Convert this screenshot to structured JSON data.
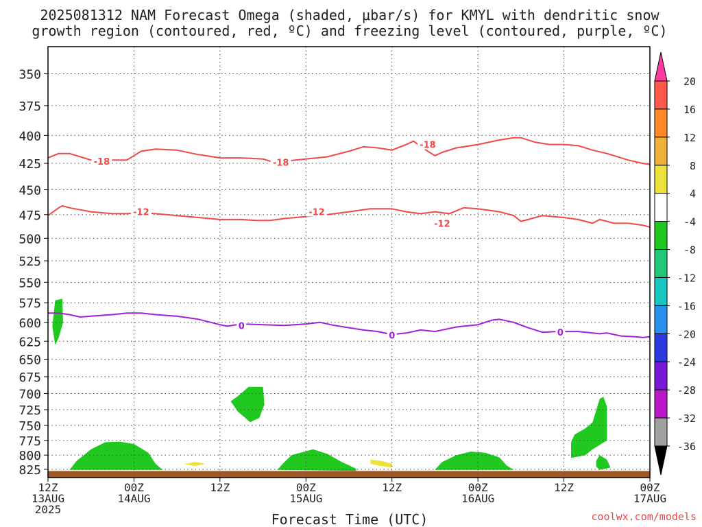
{
  "title_line1": "2025081312 NAM Forecast Omega (shaded, μbar/s) for KMYL with dendritic snow",
  "title_line2": "growth region (contoured, red, ºC) and freezing level (contoured, purple, ºC)",
  "credit": "coolwx.com/models",
  "chart_data": {
    "type": "time-height cross section",
    "xlabel": "Forecast Time (UTC)",
    "x_ticks": [
      {
        "hour": 0,
        "line1": "12Z",
        "line2": "13AUG",
        "line3": "2025"
      },
      {
        "hour": 12,
        "line1": "00Z",
        "line2": "14AUG"
      },
      {
        "hour": 24,
        "line1": "12Z"
      },
      {
        "hour": 36,
        "line1": "00Z",
        "line2": "15AUG"
      },
      {
        "hour": 48,
        "line1": "12Z"
      },
      {
        "hour": 60,
        "line1": "00Z",
        "line2": "16AUG"
      },
      {
        "hour": 72,
        "line1": "12Z"
      },
      {
        "hour": 84,
        "line1": "00Z",
        "line2": "17AUG"
      }
    ],
    "x_range_hours": [
      0,
      84
    ],
    "y_label_unit": "mb",
    "y_ticks": [
      350,
      375,
      400,
      425,
      450,
      475,
      500,
      525,
      550,
      575,
      600,
      625,
      650,
      675,
      700,
      725,
      750,
      775,
      800,
      825
    ],
    "y_range": [
      330,
      840
    ],
    "y_scale": "log-pressure",
    "grid": true,
    "colorbar": {
      "labels": [
        20,
        16,
        12,
        8,
        4,
        -4,
        -8,
        -12,
        -16,
        -20,
        -24,
        -28,
        -32,
        -36
      ],
      "colors": [
        "#ff3aa0",
        "#ff5a4a",
        "#ff8a2a",
        "#f0b03a",
        "#ece23a",
        "#ffffff",
        "#20c820",
        "#20c878",
        "#18c8c0",
        "#2a90f0",
        "#2a3ae0",
        "#7a18d8",
        "#b818c8",
        "#a0a0a0",
        "#000000"
      ]
    },
    "contours": [
      {
        "label": "-18",
        "color": "#f04848",
        "label_positions": [
          {
            "hour": 7.5,
            "p": 423
          },
          {
            "hour": 32.5,
            "p": 424
          },
          {
            "hour": 53,
            "p": 408
          }
        ],
        "points": [
          [
            0,
            420
          ],
          [
            1.5,
            416
          ],
          [
            3,
            416
          ],
          [
            4.5,
            419
          ],
          [
            6,
            422
          ],
          [
            9,
            422
          ],
          [
            11,
            422
          ],
          [
            13,
            414
          ],
          [
            15,
            412
          ],
          [
            18,
            413
          ],
          [
            21,
            417
          ],
          [
            24,
            420
          ],
          [
            27,
            420
          ],
          [
            30,
            421
          ],
          [
            31,
            423
          ],
          [
            33,
            423
          ],
          [
            36,
            421
          ],
          [
            39,
            419
          ],
          [
            42,
            414
          ],
          [
            44,
            410
          ],
          [
            46,
            411
          ],
          [
            48,
            413
          ],
          [
            50,
            408
          ],
          [
            51,
            405
          ],
          [
            53,
            414
          ],
          [
            54,
            418
          ],
          [
            55,
            415
          ],
          [
            57,
            411
          ],
          [
            60,
            408
          ],
          [
            63,
            404
          ],
          [
            65,
            402
          ],
          [
            66,
            402
          ],
          [
            68,
            406
          ],
          [
            70,
            408
          ],
          [
            72,
            408
          ],
          [
            74,
            409
          ],
          [
            76,
            413
          ],
          [
            78,
            416
          ],
          [
            79,
            418
          ],
          [
            81,
            422
          ],
          [
            83,
            425
          ],
          [
            84,
            426
          ]
        ]
      },
      {
        "label": "-12",
        "color": "#f04848",
        "label_positions": [
          {
            "hour": 13,
            "p": 472
          },
          {
            "hour": 37.5,
            "p": 472
          },
          {
            "hour": 55,
            "p": 484
          }
        ],
        "points": [
          [
            0,
            476
          ],
          [
            1.5,
            468
          ],
          [
            2,
            466
          ],
          [
            3,
            468
          ],
          [
            4.5,
            470
          ],
          [
            6,
            472
          ],
          [
            9,
            474
          ],
          [
            11,
            474
          ],
          [
            13,
            473
          ],
          [
            15,
            474
          ],
          [
            18,
            476
          ],
          [
            21,
            478
          ],
          [
            24,
            480
          ],
          [
            27,
            480
          ],
          [
            29,
            481
          ],
          [
            31,
            481
          ],
          [
            33,
            479
          ],
          [
            36,
            477
          ],
          [
            39,
            475
          ],
          [
            42,
            472
          ],
          [
            45,
            469
          ],
          [
            48,
            469
          ],
          [
            50,
            472
          ],
          [
            52,
            474
          ],
          [
            54,
            472
          ],
          [
            56,
            474
          ],
          [
            58,
            468
          ],
          [
            60,
            469
          ],
          [
            63,
            472
          ],
          [
            65,
            476
          ],
          [
            66,
            482
          ],
          [
            67,
            480
          ],
          [
            68,
            478
          ],
          [
            69,
            476
          ],
          [
            72,
            478
          ],
          [
            74,
            480
          ],
          [
            76,
            484
          ],
          [
            77,
            480
          ],
          [
            79,
            484
          ],
          [
            81,
            484
          ],
          [
            83,
            486
          ],
          [
            84,
            488
          ]
        ]
      },
      {
        "label": "0",
        "color": "#a020d8",
        "label_positions": [
          {
            "hour": 27,
            "p": 604
          },
          {
            "hour": 48,
            "p": 617
          },
          {
            "hour": 71.5,
            "p": 613
          }
        ],
        "points": [
          [
            0,
            588
          ],
          [
            1.5,
            588
          ],
          [
            3,
            590
          ],
          [
            4.5,
            593
          ],
          [
            6,
            592
          ],
          [
            9,
            590
          ],
          [
            11,
            588
          ],
          [
            13,
            588
          ],
          [
            15,
            590
          ],
          [
            18,
            592
          ],
          [
            21,
            596
          ],
          [
            24,
            603
          ],
          [
            25,
            605
          ],
          [
            27,
            602
          ],
          [
            30,
            603
          ],
          [
            33,
            604
          ],
          [
            36,
            602
          ],
          [
            38,
            600
          ],
          [
            40,
            604
          ],
          [
            44,
            610
          ],
          [
            46,
            612
          ],
          [
            48,
            616
          ],
          [
            50,
            614
          ],
          [
            52,
            610
          ],
          [
            54,
            612
          ],
          [
            57,
            606
          ],
          [
            60,
            603
          ],
          [
            62,
            597
          ],
          [
            63,
            596
          ],
          [
            65,
            600
          ],
          [
            67,
            607
          ],
          [
            69,
            613
          ],
          [
            71,
            612
          ],
          [
            74,
            612
          ],
          [
            76,
            614
          ],
          [
            77,
            615
          ],
          [
            78,
            614
          ],
          [
            80,
            618
          ],
          [
            82,
            619
          ],
          [
            83,
            620
          ],
          [
            84,
            619
          ]
        ]
      }
    ],
    "omega_regions": [
      {
        "range": "-4 to -8",
        "color": "#20c820",
        "points": [
          [
            1.0,
            572
          ],
          [
            2.0,
            570
          ],
          [
            2.1,
            600
          ],
          [
            1.5,
            620
          ],
          [
            1.0,
            630
          ],
          [
            0.6,
            605
          ]
        ]
      },
      {
        "range": "-4 to -8",
        "color": "#20c820",
        "points": [
          [
            3,
            826
          ],
          [
            4,
            810
          ],
          [
            6,
            790
          ],
          [
            8,
            778
          ],
          [
            10,
            777
          ],
          [
            12,
            781
          ],
          [
            14,
            796
          ],
          [
            15,
            815
          ],
          [
            16,
            826
          ]
        ]
      },
      {
        "range": "-4 to -8",
        "color": "#20c820",
        "points": [
          [
            25.5,
            712
          ],
          [
            26.5,
            704
          ],
          [
            28,
            690
          ],
          [
            30,
            690
          ],
          [
            30.2,
            717
          ],
          [
            29.5,
            738
          ],
          [
            28.2,
            745
          ],
          [
            26.5,
            728
          ]
        ]
      },
      {
        "range": "-4 to -8",
        "color": "#20c820",
        "points": [
          [
            32,
            826
          ],
          [
            33,
            812
          ],
          [
            34,
            800
          ],
          [
            37,
            790
          ],
          [
            39,
            798
          ],
          [
            41,
            812
          ],
          [
            43,
            824
          ],
          [
            43,
            828
          ]
        ]
      },
      {
        "range": "-4 to -8",
        "color": "#20c820",
        "points": [
          [
            54,
            826
          ],
          [
            55,
            812
          ],
          [
            57,
            800
          ],
          [
            59,
            794
          ],
          [
            61,
            796
          ],
          [
            63,
            804
          ],
          [
            64,
            818
          ],
          [
            65,
            826
          ]
        ]
      },
      {
        "range": "-4 to -8",
        "color": "#20c820",
        "points": [
          [
            73,
            778
          ],
          [
            73.5,
            765
          ],
          [
            75,
            755
          ],
          [
            76,
            745
          ],
          [
            77,
            708
          ],
          [
            77.5,
            705
          ],
          [
            78,
            720
          ],
          [
            78,
            775
          ],
          [
            76,
            790
          ],
          [
            75,
            800
          ],
          [
            73,
            805
          ],
          [
            73,
            790
          ]
        ]
      },
      {
        "range": "-4 to -8",
        "color": "#20c820",
        "points": [
          [
            76.5,
            810
          ],
          [
            77,
            800
          ],
          [
            78,
            808
          ],
          [
            78.5,
            822
          ],
          [
            77,
            826
          ],
          [
            76.5,
            820
          ]
        ]
      },
      {
        "range": "4 to 8",
        "color": "#ece23a",
        "points": [
          [
            19,
            816
          ],
          [
            20.5,
            812
          ],
          [
            22,
            815
          ],
          [
            20.5,
            819
          ]
        ]
      },
      {
        "range": "4 to 8",
        "color": "#ece23a",
        "points": [
          [
            45,
            808
          ],
          [
            46.5,
            810
          ],
          [
            48,
            815
          ],
          [
            48,
            822
          ],
          [
            46,
            818
          ],
          [
            45,
            815
          ]
        ]
      }
    ],
    "surface": {
      "color": "#a05a2a",
      "p_top": 828
    }
  }
}
